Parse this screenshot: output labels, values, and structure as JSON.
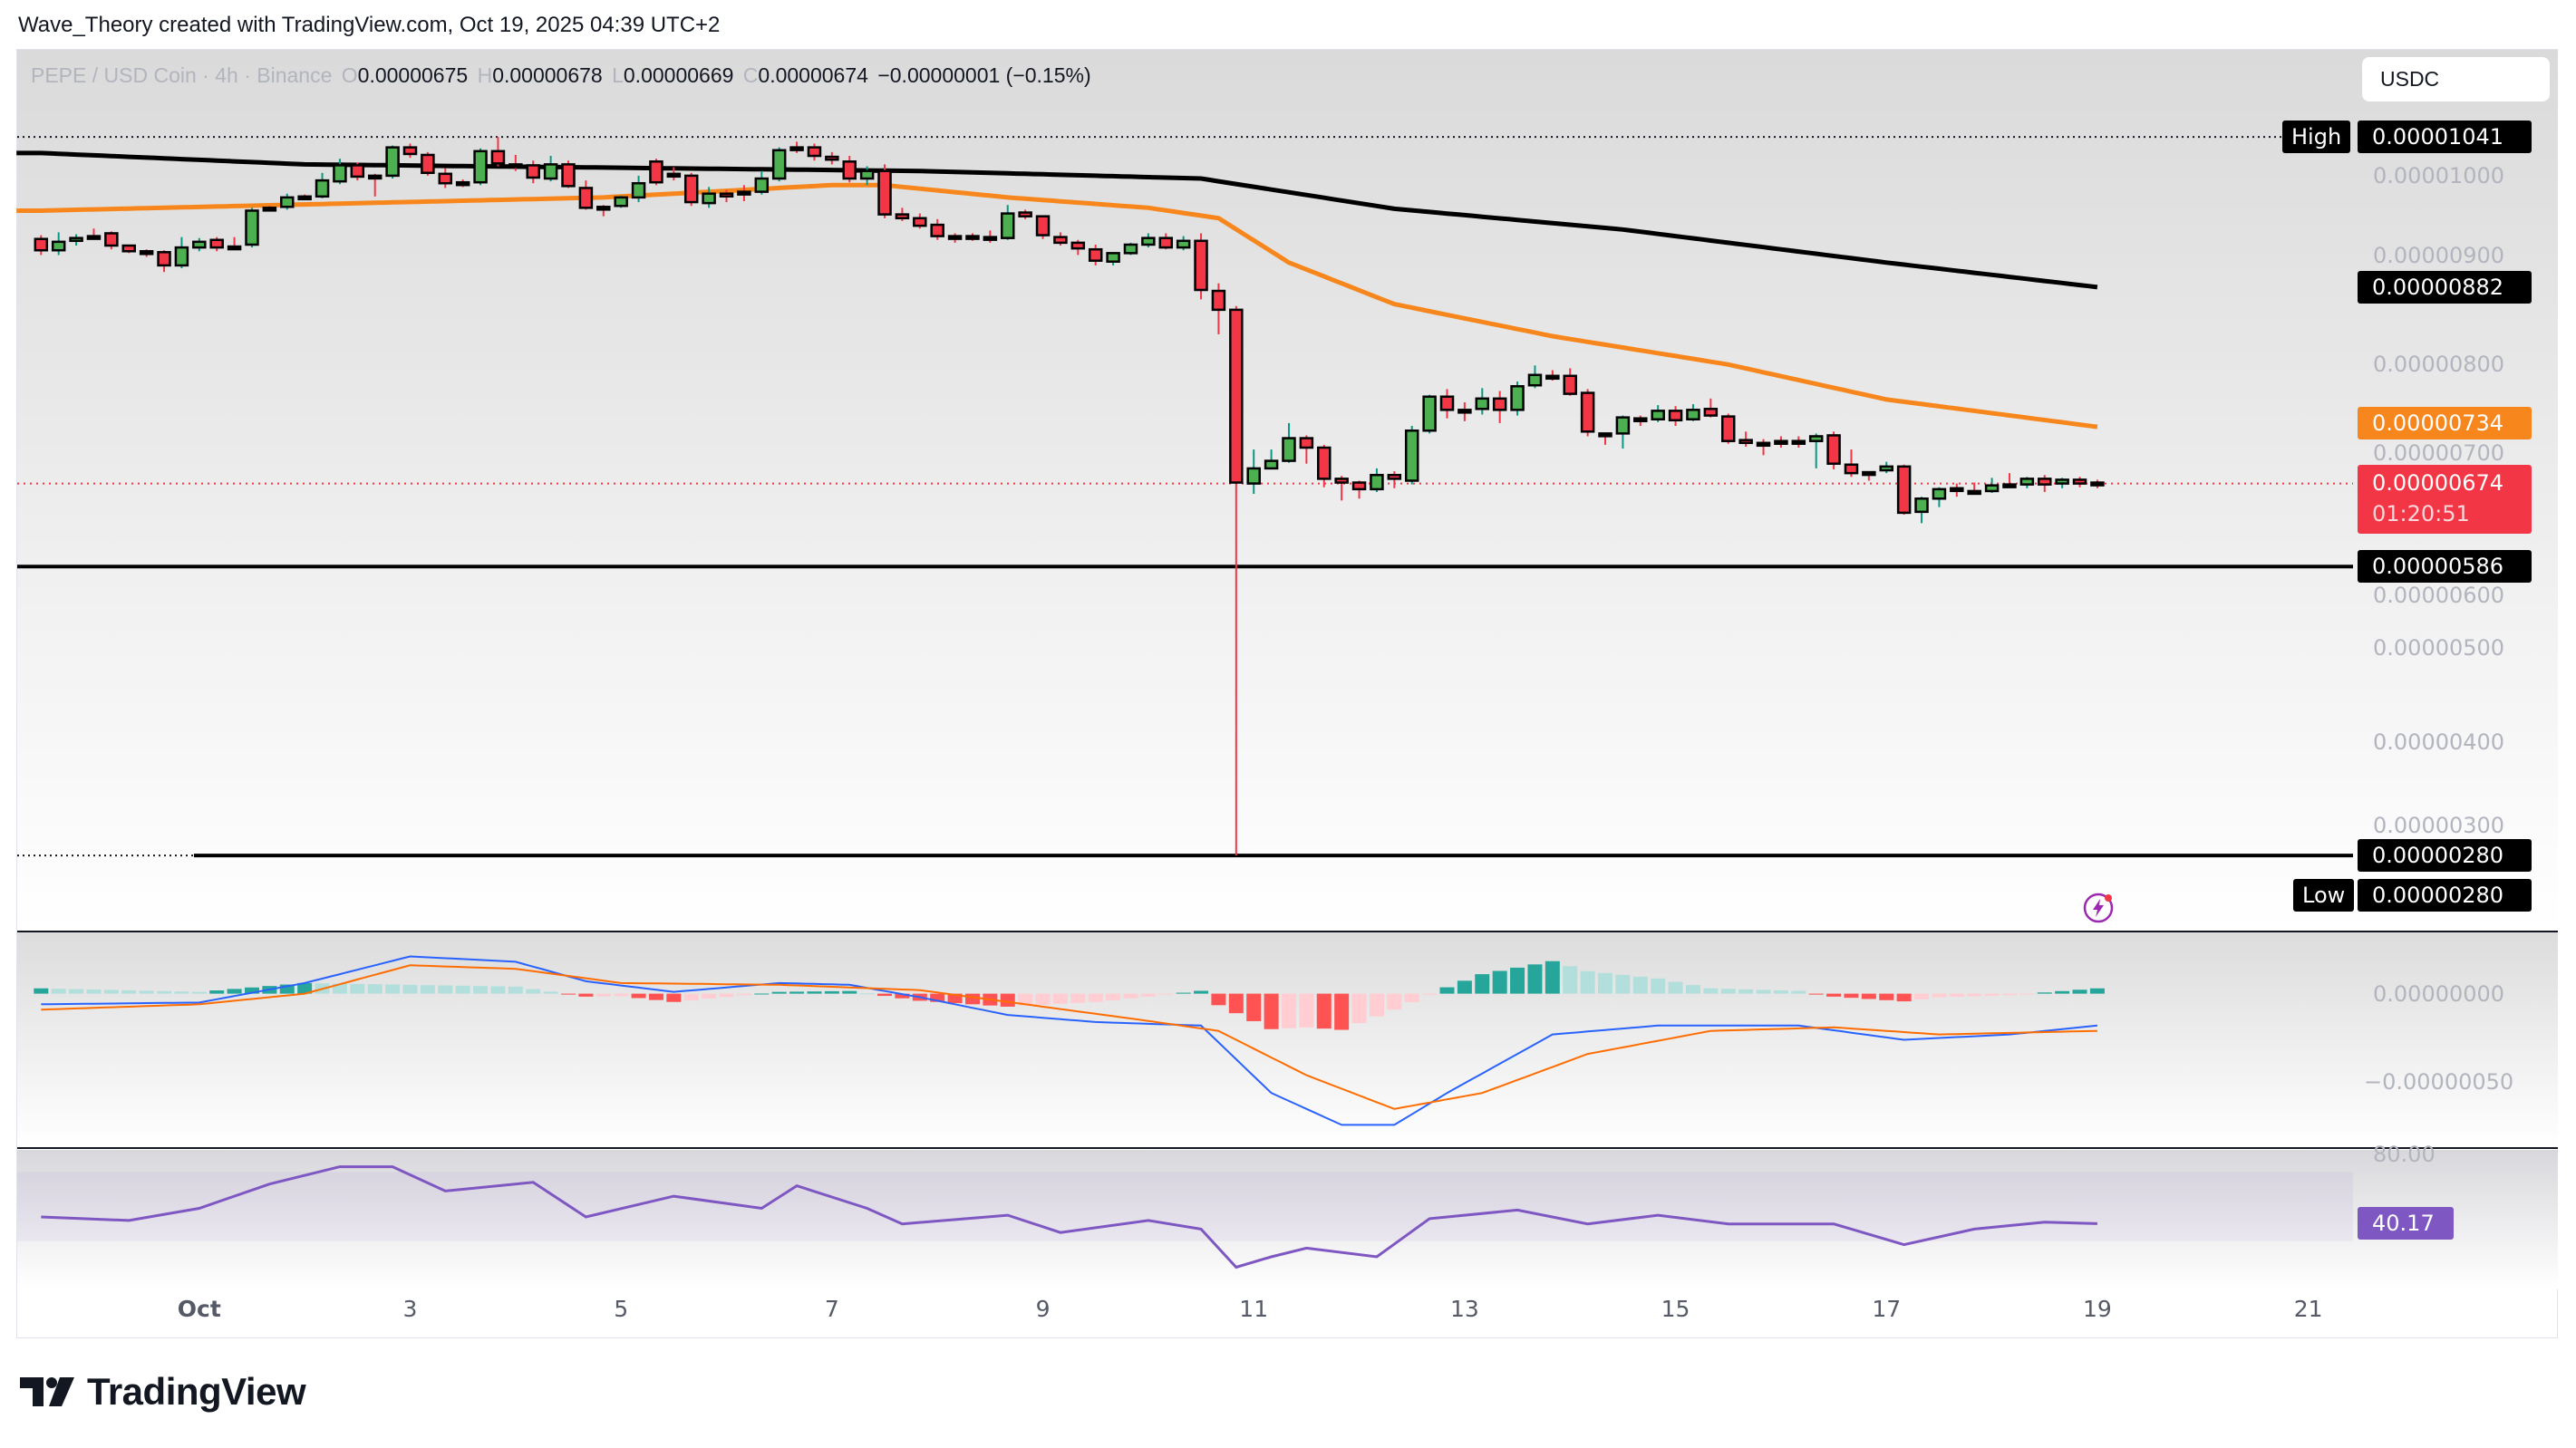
{
  "header": {
    "attribution": "Wave_Theory created with TradingView.com, Oct 19, 2025 04:39 UTC+2"
  },
  "legend": {
    "symbol": "PEPE / USD Coin · 4h · Binance",
    "o_label": "O",
    "o": "0.00000675",
    "h_label": "H",
    "h": "0.00000678",
    "l_label": "L",
    "l": "0.00000669",
    "c_label": "C",
    "c": "0.00000674",
    "change": "−0.00000001 (−0.15%)"
  },
  "currency_button": "USDC",
  "price_axis": {
    "ticks": [
      "0.00001000",
      "0.00000900",
      "0.00000800",
      "0.00000700",
      "0.00000600",
      "0.00000500",
      "0.00000400",
      "0.00000300"
    ]
  },
  "markers": {
    "high_label": "High",
    "high": "0.00001041",
    "ema_black": "0.00000882",
    "ema_orange": "0.00000734",
    "last": "0.00000674",
    "countdown": "01:20:51",
    "support": "0.00000586",
    "low_line": "0.00000280",
    "low_label": "Low",
    "low": "0.00000280"
  },
  "macd_axis": [
    "0.00000000",
    "−0.00000050"
  ],
  "rsi_axis": {
    "top": "80.00",
    "value": "40.17"
  },
  "colors": {
    "up_body": "#4caf50",
    "down_body": "#f23645",
    "up_wick": "#089981",
    "down_wick": "#f23645",
    "ema_orange": "#f7861c",
    "ema_black": "#000000",
    "macd": "#2962ff",
    "signal": "#ff6d00",
    "hist_up_strong": "#26a69a",
    "hist_up_weak": "#b2dfdb",
    "hist_down_strong": "#ff5252",
    "hist_down_weak": "#ffcdd2",
    "rsi": "#7e57c2",
    "alert_icon": "#9c27b0"
  },
  "icons": {
    "alert": "lightning-alert-icon",
    "logo": "tradingview-logo-icon"
  },
  "footer": {
    "logo_text": "TradingView"
  },
  "chart_data": {
    "type": "candlestick",
    "interval": "4h",
    "candles_ohlc": [
      [
        9.33e-06,
        9.37e-06,
        9.16e-06,
        9.21e-06
      ],
      [
        9.21e-06,
        9.4e-06,
        9.16e-06,
        9.3e-06
      ],
      [
        9.31e-06,
        9.38e-06,
        9.26e-06,
        9.34e-06
      ],
      [
        9.36e-06,
        9.44e-06,
        9.34e-06,
        9.35e-06
      ],
      [
        9.39e-06,
        9.41e-06,
        9.22e-06,
        9.26e-06
      ],
      [
        9.26e-06,
        9.27e-06,
        9.18e-06,
        9.2e-06
      ],
      [
        9.2e-06,
        9.22e-06,
        9.14e-06,
        9.2e-06
      ],
      [
        9.19e-06,
        9.21e-06,
        8.98e-06,
        9.05e-06
      ],
      [
        9.05e-06,
        9.35e-06,
        9.02e-06,
        9.24e-06
      ],
      [
        9.24e-06,
        9.34e-06,
        9.2e-06,
        9.3e-06
      ],
      [
        9.32e-06,
        9.35e-06,
        9.2e-06,
        9.24e-06
      ],
      [
        9.25e-06,
        9.35e-06,
        9.21e-06,
        9.24e-06
      ],
      [
        9.27e-06,
        9.66e-06,
        9.24e-06,
        9.63e-06
      ],
      [
        9.66e-06,
        9.68e-06,
        9.62e-06,
        9.65e-06
      ],
      [
        9.67e-06,
        9.81e-06,
        9.64e-06,
        9.77e-06
      ],
      [
        9.78e-06,
        9.8e-06,
        9.74e-06,
        9.78e-06
      ],
      [
        9.78e-06,
        1.003e-05,
        9.76e-06,
        9.95e-06
      ],
      [
        9.94e-06,
        1.018e-05,
        9.91e-06,
        1.011e-05
      ],
      [
        1.011e-05,
        1.014e-05,
        9.95e-06,
        9.99e-06
      ],
      [
        1e-05,
        1.002e-05,
        9.78e-06,
        1e-05
      ],
      [
        1e-05,
        1.032e-05,
        9.97e-06,
        1.03e-05
      ],
      [
        1.03e-05,
        1.034e-05,
        1.019e-05,
        1.023e-05
      ],
      [
        1.022e-05,
        1.025e-05,
        1e-05,
        1.003e-05
      ],
      [
        1.002e-05,
        1.008e-05,
        9.87e-06,
        9.92e-06
      ],
      [
        9.93e-06,
        9.96e-06,
        9.88e-06,
        9.93e-06
      ],
      [
        9.93e-06,
        1.029e-05,
        9.9e-06,
        1.026e-05
      ],
      [
        1.026e-05,
        1.041e-05,
        1.01e-05,
        1.013e-05
      ],
      [
        1.012e-05,
        1.022e-05,
        1.005e-05,
        1.012e-05
      ],
      [
        1.011e-05,
        1.016e-05,
        9.92e-06,
        9.98e-06
      ],
      [
        9.97e-06,
        1.021e-05,
        9.94e-06,
        1.012e-05
      ],
      [
        1.012e-05,
        1.016e-05,
        9.87e-06,
        9.89e-06
      ],
      [
        9.87e-06,
        9.95e-06,
        9.64e-06,
        9.66e-06
      ],
      [
        9.67e-06,
        9.69e-06,
        9.57e-06,
        9.66e-06
      ],
      [
        9.68e-06,
        9.79e-06,
        9.66e-06,
        9.77e-06
      ],
      [
        9.77e-06,
        1e-05,
        9.72e-06,
        9.92e-06
      ],
      [
        1.015e-05,
        1.018e-05,
        9.9e-06,
        9.93e-06
      ],
      [
        1.002e-05,
        1.009e-05,
        9.95e-06,
        1.002e-05
      ],
      [
        1e-05,
        1.003e-05,
        9.68e-06,
        9.72e-06
      ],
      [
        9.71e-06,
        9.88e-06,
        9.66e-06,
        9.81e-06
      ],
      [
        9.81e-06,
        9.85e-06,
        9.72e-06,
        9.79e-06
      ],
      [
        9.83e-06,
        9.9e-06,
        9.73e-06,
        9.83e-06
      ],
      [
        9.83e-06,
        1.005e-05,
        9.8e-06,
        9.97e-06
      ],
      [
        9.97e-06,
        1.03e-05,
        9.94e-06,
        1.027e-05
      ],
      [
        1.03e-05,
        1.036e-05,
        1.024e-05,
        1.03e-05
      ],
      [
        1.03e-05,
        1.034e-05,
        1.016e-05,
        1.021e-05
      ],
      [
        1.02e-05,
        1.025e-05,
        1.012e-05,
        1.017e-05
      ],
      [
        1.015e-05,
        1.021e-05,
        9.93e-06,
        9.97e-06
      ],
      [
        9.97e-06,
        1.01e-05,
        9.9e-06,
        1.005e-05
      ],
      [
        1.005e-05,
        1.012e-05,
        9.55e-06,
        9.59e-06
      ],
      [
        9.59e-06,
        9.66e-06,
        9.52e-06,
        9.55e-06
      ],
      [
        9.55e-06,
        9.6e-06,
        9.44e-06,
        9.47e-06
      ],
      [
        9.48e-06,
        9.54e-06,
        9.32e-06,
        9.36e-06
      ],
      [
        9.36e-06,
        9.39e-06,
        9.29e-06,
        9.36e-06
      ],
      [
        9.36e-06,
        9.39e-06,
        9.31e-06,
        9.36e-06
      ],
      [
        9.35e-06,
        9.42e-06,
        9.29e-06,
        9.35e-06
      ],
      [
        9.34e-06,
        9.69e-06,
        9.32e-06,
        9.6e-06
      ],
      [
        9.61e-06,
        9.64e-06,
        9.54e-06,
        9.57e-06
      ],
      [
        9.57e-06,
        9.58e-06,
        9.33e-06,
        9.37e-06
      ],
      [
        9.35e-06,
        9.4e-06,
        9.26e-06,
        9.29e-06
      ],
      [
        9.29e-06,
        9.32e-06,
        9.16e-06,
        9.23e-06
      ],
      [
        9.22e-06,
        9.27e-06,
        9.05e-06,
        9.1e-06
      ],
      [
        9.09e-06,
        9.19e-06,
        9.05e-06,
        9.18e-06
      ],
      [
        9.18e-06,
        9.29e-06,
        9.16e-06,
        9.27e-06
      ],
      [
        9.27e-06,
        9.39e-06,
        9.24e-06,
        9.34e-06
      ],
      [
        9.34e-06,
        9.39e-06,
        9.22e-06,
        9.24e-06
      ],
      [
        9.24e-06,
        9.36e-06,
        9.21e-06,
        9.31e-06
      ],
      [
        9.31e-06,
        9.39e-06,
        8.69e-06,
        8.79e-06
      ],
      [
        8.78e-06,
        8.86e-06,
        8.32e-06,
        8.58e-06
      ],
      [
        8.58e-06,
        8.62e-06,
        2.8e-06,
        6.75e-06
      ],
      [
        6.74e-06,
        7.1e-06,
        6.63e-06,
        6.9e-06
      ],
      [
        6.9e-06,
        7.1e-06,
        6.89e-06,
        6.98e-06
      ],
      [
        6.98e-06,
        7.38e-06,
        6.96e-06,
        7.22e-06
      ],
      [
        7.22e-06,
        7.25e-06,
        6.95e-06,
        7.12e-06
      ],
      [
        7.12e-06,
        7.15e-06,
        6.7e-06,
        6.79e-06
      ],
      [
        6.79e-06,
        6.82e-06,
        6.56e-06,
        6.75e-06
      ],
      [
        6.75e-06,
        6.77e-06,
        6.58e-06,
        6.68e-06
      ],
      [
        6.68e-06,
        6.9e-06,
        6.65e-06,
        6.83e-06
      ],
      [
        6.83e-06,
        6.87e-06,
        6.69e-06,
        6.79e-06
      ],
      [
        6.77e-06,
        7.35e-06,
        6.73e-06,
        7.3e-06
      ],
      [
        7.3e-06,
        7.68e-06,
        7.27e-06,
        7.66e-06
      ],
      [
        7.66e-06,
        7.74e-06,
        7.43e-06,
        7.52e-06
      ],
      [
        7.52e-06,
        7.6e-06,
        7.4e-06,
        7.52e-06
      ],
      [
        7.53e-06,
        7.75e-06,
        7.47e-06,
        7.64e-06
      ],
      [
        7.64e-06,
        7.72e-06,
        7.38e-06,
        7.52e-06
      ],
      [
        7.52e-06,
        7.82e-06,
        7.46e-06,
        7.77e-06
      ],
      [
        7.78e-06,
        7.99e-06,
        7.75e-06,
        7.89e-06
      ],
      [
        7.88e-06,
        7.94e-06,
        7.83e-06,
        7.88e-06
      ],
      [
        7.88e-06,
        7.96e-06,
        7.67e-06,
        7.69e-06
      ],
      [
        7.7e-06,
        7.74e-06,
        7.24e-06,
        7.29e-06
      ],
      [
        7.27e-06,
        7.28e-06,
        7.15e-06,
        7.27e-06
      ],
      [
        7.27e-06,
        7.46e-06,
        7.11e-06,
        7.44e-06
      ],
      [
        7.43e-06,
        7.46e-06,
        7.35e-06,
        7.43e-06
      ],
      [
        7.42e-06,
        7.57e-06,
        7.39e-06,
        7.51e-06
      ],
      [
        7.51e-06,
        7.56e-06,
        7.35e-06,
        7.41e-06
      ],
      [
        7.42e-06,
        7.58e-06,
        7.4e-06,
        7.52e-06
      ],
      [
        7.53e-06,
        7.64e-06,
        7.44e-06,
        7.46e-06
      ],
      [
        7.45e-06,
        7.48e-06,
        7.16e-06,
        7.19e-06
      ],
      [
        7.2e-06,
        7.29e-06,
        7.13e-06,
        7.17e-06
      ],
      [
        7.17e-06,
        7.21e-06,
        7.04e-06,
        7.17e-06
      ],
      [
        7.19e-06,
        7.24e-06,
        7.12e-06,
        7.19e-06
      ],
      [
        7.19e-06,
        7.24e-06,
        7.12e-06,
        7.19e-06
      ],
      [
        7.19e-06,
        7.27e-06,
        6.9e-06,
        7.24e-06
      ],
      [
        7.25e-06,
        7.29e-06,
        6.89e-06,
        6.95e-06
      ],
      [
        6.94e-06,
        7.1e-06,
        6.81e-06,
        6.85e-06
      ],
      [
        6.86e-06,
        6.87e-06,
        6.77e-06,
        6.86e-06
      ],
      [
        6.88e-06,
        6.97e-06,
        6.85e-06,
        6.92e-06
      ],
      [
        6.92e-06,
        6.94e-06,
        6.41e-06,
        6.43e-06
      ],
      [
        6.44e-06,
        6.6e-06,
        6.32e-06,
        6.58e-06
      ],
      [
        6.58e-06,
        6.7e-06,
        6.49e-06,
        6.68e-06
      ],
      [
        6.69e-06,
        6.74e-06,
        6.6e-06,
        6.69e-06
      ],
      [
        6.66e-06,
        6.75e-06,
        6.63e-06,
        6.66e-06
      ],
      [
        6.66e-06,
        6.8e-06,
        6.64e-06,
        6.72e-06
      ],
      [
        6.73e-06,
        6.85e-06,
        6.7e-06,
        6.73e-06
      ],
      [
        6.73e-06,
        6.81e-06,
        6.69e-06,
        6.79e-06
      ],
      [
        6.79e-06,
        6.83e-06,
        6.65e-06,
        6.73e-06
      ],
      [
        6.74e-06,
        6.8e-06,
        6.69e-06,
        6.78e-06
      ],
      [
        6.78e-06,
        6.81e-06,
        6.7e-06,
        6.74e-06
      ],
      [
        6.75e-06,
        6.78e-06,
        6.69e-06,
        6.74e-06
      ]
    ],
    "ema_orange_points": [
      [
        0,
        9.63e-06
      ],
      [
        32,
        9.77e-06
      ],
      [
        45,
        9.9e-06
      ],
      [
        48,
        9.9e-06
      ],
      [
        55,
        9.77e-06
      ],
      [
        63,
        9.66e-06
      ],
      [
        67,
        9.55e-06
      ],
      [
        71,
        9.08e-06
      ],
      [
        77,
        8.64e-06
      ],
      [
        86,
        8.3e-06
      ],
      [
        96,
        8e-06
      ],
      [
        105,
        7.63e-06
      ],
      [
        117,
        7.34e-06
      ]
    ],
    "ema_black_points": [
      [
        0,
        1.024e-05
      ],
      [
        15,
        1.012e-05
      ],
      [
        30,
        1.009e-05
      ],
      [
        50,
        1.005e-05
      ],
      [
        66,
        9.97e-06
      ],
      [
        77,
        9.65e-06
      ],
      [
        90,
        9.43e-06
      ],
      [
        105,
        9.08e-06
      ],
      [
        117,
        8.82e-06
      ]
    ],
    "horizontal_levels": {
      "high": 1.041e-05,
      "support": 5.86e-06,
      "low": 2.8e-06,
      "last": 6.74e-06
    },
    "price_range": [
      2.7e-06,
      1.06e-05
    ],
    "macd_line_points": [
      [
        0,
        -6e-08
      ],
      [
        9,
        -5e-08
      ],
      [
        15,
        6e-08
      ],
      [
        21,
        2.1e-07
      ],
      [
        27,
        1.8e-07
      ],
      [
        31,
        7e-08
      ],
      [
        36,
        1e-08
      ],
      [
        42,
        6e-08
      ],
      [
        46,
        5e-08
      ],
      [
        50,
        -2e-08
      ],
      [
        55,
        -1.2e-07
      ],
      [
        60,
        -1.6e-07
      ],
      [
        66,
        -1.8e-07
      ],
      [
        70,
        -5.6e-07
      ],
      [
        74,
        -7.4e-07
      ],
      [
        77,
        -7.4e-07
      ],
      [
        80,
        -5.6e-07
      ],
      [
        86,
        -2.3e-07
      ],
      [
        92,
        -1.8e-07
      ],
      [
        100,
        -1.8e-07
      ],
      [
        106,
        -2.6e-07
      ],
      [
        112,
        -2.3e-07
      ],
      [
        117,
        -1.8e-07
      ]
    ],
    "signal_line_points": [
      [
        0,
        -9e-08
      ],
      [
        9,
        -6e-08
      ],
      [
        15,
        0
      ],
      [
        21,
        1.6e-07
      ],
      [
        27,
        1.4e-07
      ],
      [
        33,
        6e-08
      ],
      [
        42,
        5e-08
      ],
      [
        50,
        2e-08
      ],
      [
        56,
        -6e-08
      ],
      [
        62,
        -1.4e-07
      ],
      [
        67,
        -2.1e-07
      ],
      [
        72,
        -4.6e-07
      ],
      [
        77,
        -6.5e-07
      ],
      [
        82,
        -5.6e-07
      ],
      [
        88,
        -3.4e-07
      ],
      [
        95,
        -2.1e-07
      ],
      [
        102,
        -1.9e-07
      ],
      [
        108,
        -2.3e-07
      ],
      [
        117,
        -2.1e-07
      ]
    ],
    "rsi_points": [
      [
        0,
        44
      ],
      [
        5,
        42
      ],
      [
        9,
        49
      ],
      [
        13,
        63
      ],
      [
        17,
        73
      ],
      [
        20,
        73
      ],
      [
        23,
        59
      ],
      [
        28,
        64
      ],
      [
        31,
        44
      ],
      [
        36,
        56
      ],
      [
        41,
        49
      ],
      [
        43,
        62
      ],
      [
        47,
        49
      ],
      [
        49,
        40
      ],
      [
        55,
        45
      ],
      [
        58,
        35
      ],
      [
        63,
        42
      ],
      [
        66,
        37
      ],
      [
        68,
        15
      ],
      [
        70,
        21
      ],
      [
        72,
        26
      ],
      [
        76,
        21
      ],
      [
        79,
        43
      ],
      [
        84,
        48
      ],
      [
        88,
        40
      ],
      [
        92,
        45
      ],
      [
        96,
        40
      ],
      [
        102,
        40
      ],
      [
        106,
        28
      ],
      [
        110,
        37
      ],
      [
        114,
        41
      ],
      [
        117,
        40.17
      ]
    ],
    "rsi_band": [
      30,
      70
    ],
    "x_ticks": [
      {
        "label": "Oct",
        "bar": 9
      },
      {
        "label": "3",
        "bar": 21
      },
      {
        "label": "5",
        "bar": 33
      },
      {
        "label": "7",
        "bar": 45
      },
      {
        "label": "9",
        "bar": 57
      },
      {
        "label": "11",
        "bar": 69
      },
      {
        "label": "13",
        "bar": 81
      },
      {
        "label": "15",
        "bar": 93
      },
      {
        "label": "17",
        "bar": 105
      },
      {
        "label": "19",
        "bar": 117
      },
      {
        "label": "21",
        "bar": 129
      }
    ]
  }
}
